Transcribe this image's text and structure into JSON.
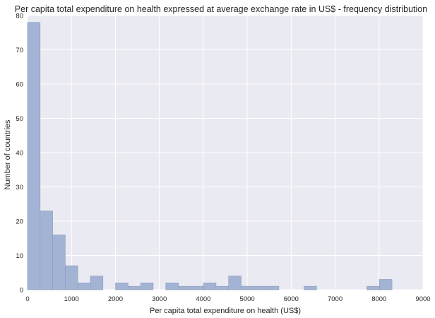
{
  "chart_data": {
    "type": "bar",
    "title": "Per capita total expenditure on health expressed at average exchange rate in US$ - frequency distribution",
    "xlabel": "Per capita total expenditure on health (US$)",
    "ylabel": "Number of countries",
    "xlim": [
      0,
      9000
    ],
    "ylim": [
      0,
      80
    ],
    "x_ticks": [
      "0",
      "1000",
      "2000",
      "3000",
      "4000",
      "5000",
      "6000",
      "7000",
      "8000",
      "9000"
    ],
    "y_ticks": [
      "0",
      "10",
      "20",
      "30",
      "40",
      "50",
      "60",
      "70",
      "80"
    ],
    "grid": true,
    "bin_width": 286,
    "bins_start": [
      0,
      286,
      572,
      858,
      1144,
      1430,
      1716,
      2002,
      2288,
      2574,
      2860,
      3146,
      3432,
      3718,
      4004,
      4290,
      4576,
      4862,
      5148,
      5434,
      5720,
      6006,
      6292,
      6578,
      6864,
      7150,
      7436,
      7722,
      8008
    ],
    "values": [
      78,
      23,
      16,
      7,
      2,
      4,
      0,
      2,
      1,
      2,
      0,
      2,
      1,
      1,
      2,
      1,
      4,
      1,
      1,
      1,
      0,
      0,
      1,
      0,
      0,
      0,
      0,
      1,
      3
    ],
    "colors": {
      "background": "#EAEAF2",
      "grid": "#FFFFFF",
      "bar_fill": "#A3B3D3",
      "bar_edge": "#8A9BBF"
    }
  }
}
